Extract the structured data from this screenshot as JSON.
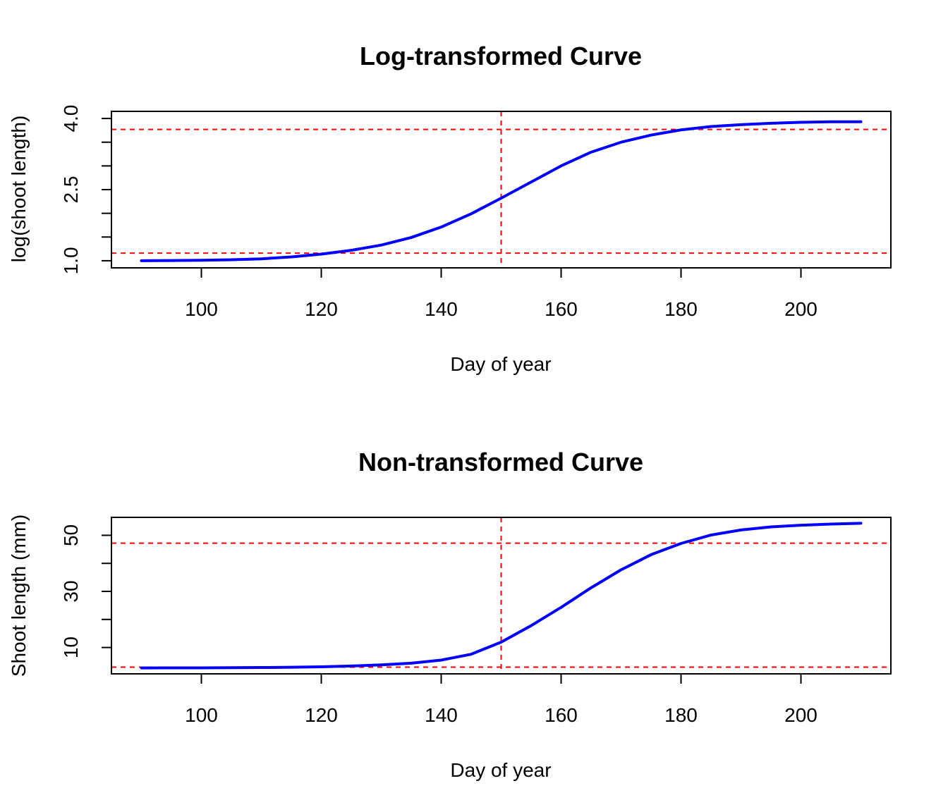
{
  "chart_data": [
    {
      "type": "line",
      "title": "Log-transformed Curve",
      "xlabel": "Day of year",
      "ylabel": "log(shoot length)",
      "xlim": [
        85,
        215
      ],
      "ylim": [
        0.85,
        4.15
      ],
      "xticks": [
        100,
        120,
        140,
        160,
        180,
        200
      ],
      "xtick_labels": [
        "100",
        "120",
        "140",
        "160",
        "180",
        "200"
      ],
      "yticks": [
        1.0,
        1.5,
        2.0,
        2.5,
        3.0,
        3.5,
        4.0
      ],
      "ytick_labels": [
        "1.0",
        "",
        "",
        "2.5",
        "",
        "",
        "4.0"
      ],
      "grid": false,
      "series": [
        {
          "color": "#0000ff",
          "x": [
            90,
            95,
            100,
            105,
            110,
            115,
            120,
            125,
            130,
            135,
            140,
            145,
            150,
            155,
            160,
            165,
            170,
            175,
            180,
            185,
            190,
            195,
            200,
            205,
            210
          ],
          "y": [
            1.0,
            1.005,
            1.01,
            1.02,
            1.04,
            1.08,
            1.14,
            1.22,
            1.33,
            1.49,
            1.71,
            1.99,
            2.32,
            2.66,
            3.0,
            3.29,
            3.5,
            3.65,
            3.76,
            3.83,
            3.87,
            3.9,
            3.92,
            3.93,
            3.93
          ]
        }
      ],
      "reference_lines": {
        "color": "#ff0000",
        "vertical_x": [
          150
        ],
        "horizontal_y": [
          1.16,
          3.77
        ]
      }
    },
    {
      "type": "line",
      "title": "Non-transformed Curve",
      "xlabel": "Day of year",
      "ylabel": "Shoot length (mm)",
      "xlim": [
        85,
        215
      ],
      "ylim": [
        0.6,
        56.4
      ],
      "xticks": [
        100,
        120,
        140,
        160,
        180,
        200
      ],
      "xtick_labels": [
        "100",
        "120",
        "140",
        "160",
        "180",
        "200"
      ],
      "yticks": [
        10,
        20,
        30,
        40,
        50
      ],
      "ytick_labels": [
        "10",
        "",
        "30",
        "",
        "50"
      ],
      "grid": false,
      "series": [
        {
          "color": "#0000ff",
          "x": [
            90,
            95,
            100,
            105,
            110,
            115,
            120,
            125,
            130,
            135,
            140,
            145,
            150,
            155,
            160,
            165,
            170,
            175,
            180,
            185,
            190,
            195,
            200,
            205,
            210
          ],
          "y": [
            2.7,
            2.73,
            2.75,
            2.8,
            2.85,
            2.95,
            3.1,
            3.4,
            3.8,
            4.4,
            5.5,
            7.6,
            11.9,
            17.8,
            24.3,
            31.3,
            37.7,
            43.1,
            47.1,
            50.1,
            51.9,
            53.0,
            53.6,
            54.0,
            54.3
          ]
        }
      ],
      "reference_lines": {
        "color": "#ff0000",
        "vertical_x": [
          150
        ],
        "horizontal_y": [
          3.0,
          47.2
        ]
      }
    }
  ]
}
